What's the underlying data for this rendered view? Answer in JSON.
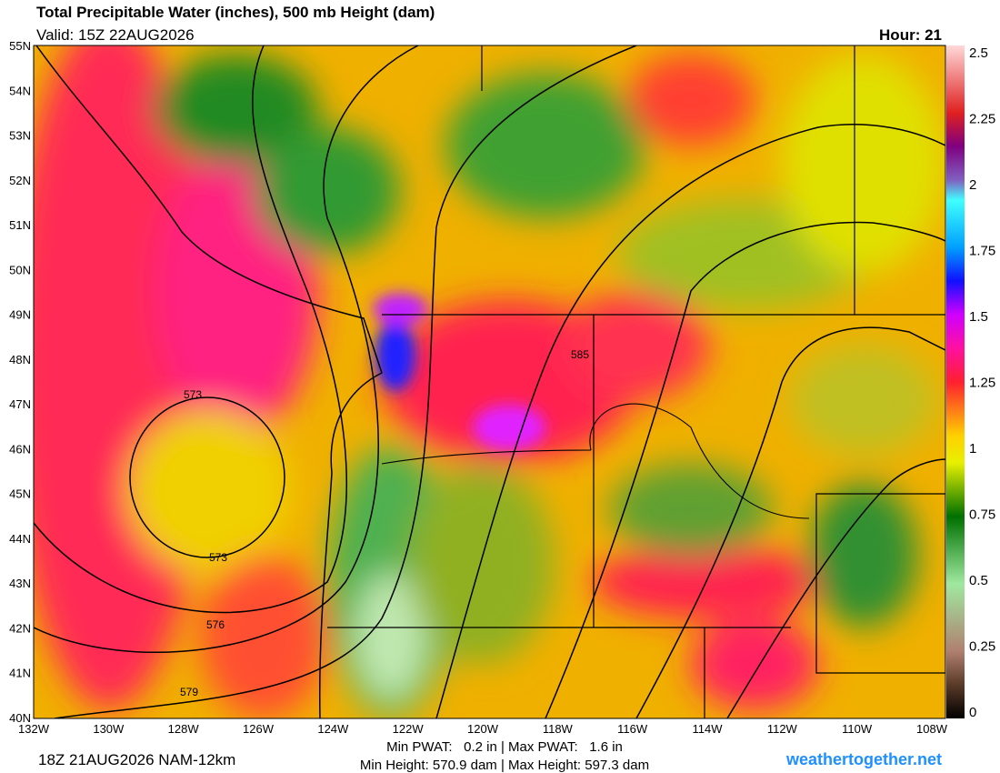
{
  "header": {
    "title": "Total Precipitable Water (inches), 500 mb Height (dam)",
    "valid": "Valid: 15Z 22AUG2026",
    "hour": "Hour: 21"
  },
  "map": {
    "lat_labels": [
      "55N",
      "54N",
      "53N",
      "52N",
      "51N",
      "50N",
      "49N",
      "48N",
      "47N",
      "46N",
      "45N",
      "44N",
      "43N",
      "42N",
      "41N",
      "40N"
    ],
    "lon_labels": [
      "132W",
      "130W",
      "128W",
      "126W",
      "124W",
      "122W",
      "120W",
      "118W",
      "116W",
      "114W",
      "112W",
      "110W",
      "108W"
    ],
    "contour_labels": [
      "573",
      "573",
      "576",
      "579",
      "585"
    ]
  },
  "colorbar": {
    "labels": [
      "2.5",
      "2.25",
      "2",
      "1.75",
      "1.5",
      "1.25",
      "1",
      "0.75",
      "0.5",
      "0.25",
      "0"
    ]
  },
  "footer": {
    "run": "18Z 21AUG2026 NAM-12km",
    "pwat": "Min PWAT:   0.2 in | Max PWAT:   1.6 in",
    "height": "Min Height: 570.9 dam | Max Height: 597.3 dam",
    "site": "weathertogether.net"
  }
}
